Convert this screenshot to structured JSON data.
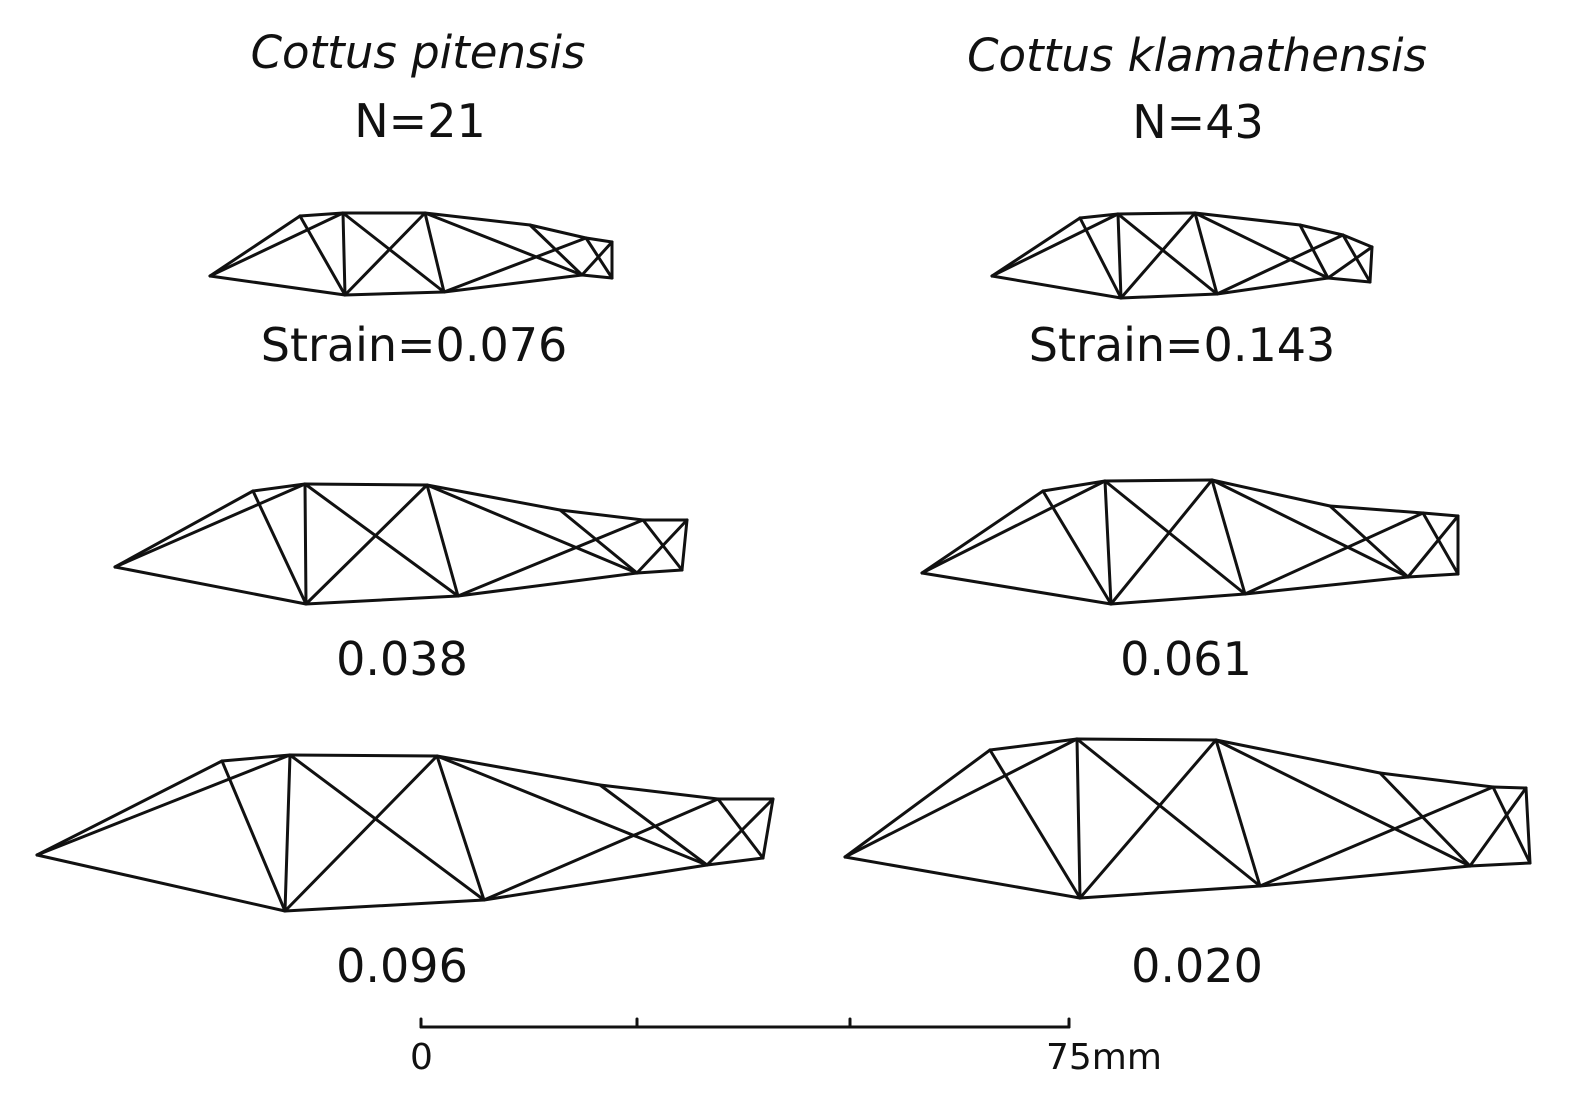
{
  "figure": {
    "left": {
      "species": "Cottus pitensis",
      "n": "N=21",
      "strains": [
        "Strain=0.076",
        "0.038",
        "0.096"
      ]
    },
    "right": {
      "species": "Cottus klamathensis",
      "n": "N=43",
      "strains": [
        "Strain=0.143",
        "0.061",
        "0.020"
      ]
    },
    "scale": {
      "start": "0",
      "end": "75mm"
    },
    "line_color": "#111111"
  }
}
